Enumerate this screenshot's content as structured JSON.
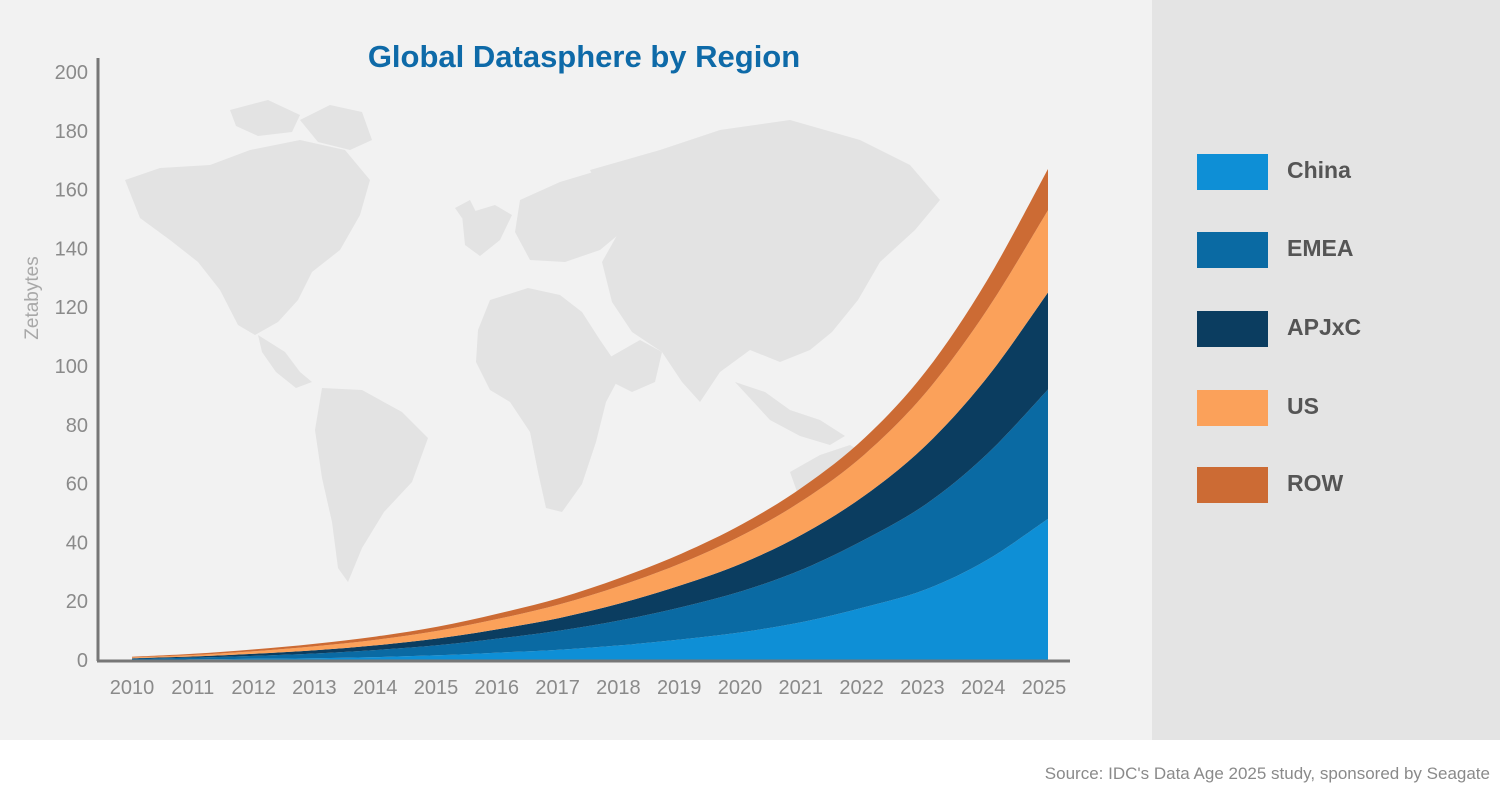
{
  "chart_data": {
    "type": "area",
    "stacked": true,
    "title": "Global Datasphere by Region",
    "xlabel": "",
    "ylabel": "Zetabytes",
    "ylim": [
      0,
      200
    ],
    "yticks": [
      0,
      20,
      40,
      60,
      80,
      100,
      120,
      140,
      160,
      180,
      200
    ],
    "categories": [
      "2010",
      "2011",
      "2012",
      "2013",
      "2014",
      "2015",
      "2016",
      "2017",
      "2018",
      "2019",
      "2020",
      "2021",
      "2022",
      "2023",
      "2024",
      "2025"
    ],
    "series": [
      {
        "name": "China",
        "color": "#0e8fd6",
        "values": [
          0.1,
          0.2,
          0.4,
          0.6,
          1.0,
          1.6,
          2.5,
          3.5,
          5,
          7,
          9.5,
          13,
          18,
          24,
          34,
          48
        ]
      },
      {
        "name": "EMEA",
        "color": "#0a6aa3",
        "values": [
          0.3,
          0.6,
          1.0,
          1.6,
          2.4,
          3.4,
          4.8,
          6.5,
          8.5,
          11,
          14,
          18,
          23,
          29,
          36,
          44
        ]
      },
      {
        "name": "APJxC",
        "color": "#0b3d60",
        "values": [
          0.2,
          0.4,
          0.7,
          1.1,
          1.6,
          2.3,
          3.2,
          4.3,
          5.8,
          7.5,
          9.5,
          12,
          15,
          20,
          26,
          33
        ]
      },
      {
        "name": "US",
        "color": "#fba15a",
        "values": [
          0.3,
          0.5,
          0.9,
          1.4,
          1.9,
          2.6,
          3.5,
          4.6,
          6,
          7.5,
          9.5,
          11.5,
          14,
          18,
          23,
          28
        ]
      },
      {
        "name": "ROW",
        "color": "#cc6b34",
        "values": [
          0.2,
          0.4,
          0.6,
          0.8,
          1.1,
          1.4,
          1.8,
          2.2,
          2.7,
          3.2,
          3.8,
          4.6,
          5.6,
          7.2,
          10,
          14
        ]
      }
    ]
  },
  "footer": {
    "source": "Source: IDC's Data Age 2025 study, sponsored by Seagate"
  }
}
